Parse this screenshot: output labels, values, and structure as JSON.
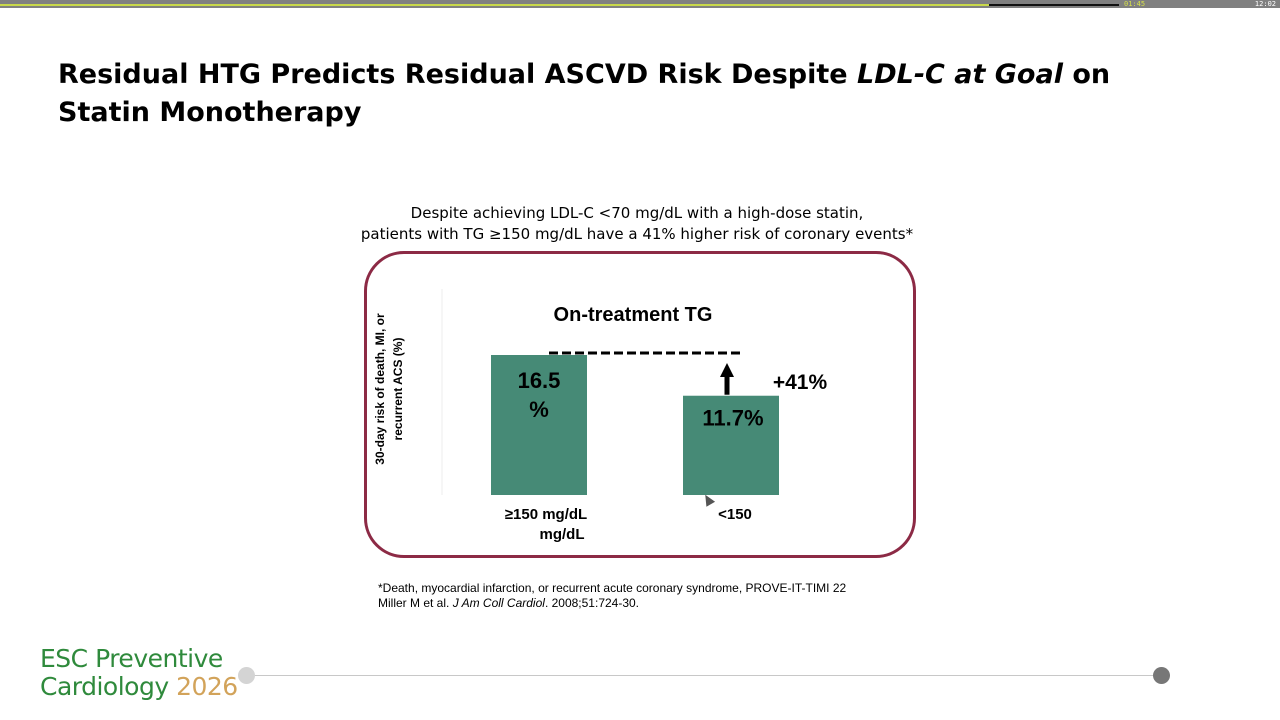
{
  "player": {
    "elapsed": "01:45",
    "total": "12:02",
    "progress": 0.773
  },
  "slide": {
    "title_part1": "Residual HTG Predicts Residual ASCVD Risk Despite ",
    "title_emph": "LDL-C at Goal",
    "title_part2": " on Statin Monotherapy",
    "subtitle_line1": "Despite achieving LDL-C <70 mg/dL with a high-dose statin,",
    "subtitle_line2": "patients with TG ≥150 mg/dL have a 41% higher risk of coronary events*",
    "footnote_line1": "*Death, myocardial infarction, or recurrent acute coronary syndrome, PROVE-IT-TIMI 22",
    "footnote_ref_prefix": "Miller M et al. ",
    "footnote_ref_journal": "J Am Coll Cardiol",
    "footnote_ref_suffix": ". 2008;51:724-30."
  },
  "logo": {
    "line1": "ESC Preventive",
    "line2": "Cardiology",
    "year": "2026"
  },
  "chart_data": {
    "type": "bar",
    "title": "On-treatment TG",
    "ylabel_line1": "30-day risk of death, MI, or",
    "ylabel_line2": "recurrent ACS (%)",
    "categories": [
      {
        "line1": "≥150 mg/dL",
        "line2": "mg/dL"
      },
      {
        "line1": "<150",
        "line2": ""
      }
    ],
    "values": [
      16.5,
      11.7
    ],
    "data_labels": [
      {
        "line1": "16.5",
        "line2": "%"
      },
      {
        "line1": "11.7%",
        "line2": ""
      }
    ],
    "annotation": "+41%",
    "bar_color": "#468a76",
    "frame_color": "#8c2a45"
  }
}
